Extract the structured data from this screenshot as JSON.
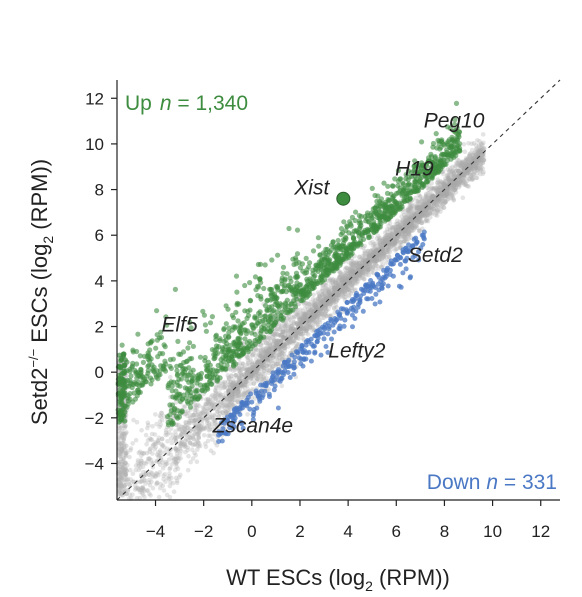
{
  "chart_data": {
    "type": "scatter",
    "xlabel_main": "WT ESCs (log",
    "xlabel_sub": "2",
    "xlabel_end": " (RPM))",
    "ylabel_main": "Setd2",
    "ylabel_sup": "−/−",
    "ylabel_mid": " ESCs (log",
    "ylabel_sub": "2",
    "ylabel_end": " (RPM))",
    "xlim": [
      -5.6,
      12.8
    ],
    "ylim": [
      -5.6,
      12.8
    ],
    "x_ticks": [
      "-4",
      "-2",
      "0",
      "2",
      "4",
      "6",
      "8",
      "10",
      "12"
    ],
    "x_tick_labels": [
      "−4",
      "−2",
      "0",
      "2",
      "4",
      "6",
      "8",
      "10",
      "12"
    ],
    "y_ticks": [
      "-4",
      "-2",
      "0",
      "2",
      "4",
      "6",
      "8",
      "10",
      "12"
    ],
    "y_tick_labels": [
      "−4",
      "−2",
      "0",
      "2",
      "4",
      "6",
      "8",
      "10",
      "12"
    ],
    "diagonal": "y = x",
    "colors": {
      "up": "#3d8c3f",
      "down": "#4a78c4",
      "unchanged": "#b3b3b3",
      "highlight": "#3d8c3f"
    },
    "up_label": "Up",
    "up_n": "n",
    "up_count": " = 1,340",
    "down_label": "Down ",
    "down_n": "n",
    "down_count": " = 331",
    "highlight_point": {
      "gene": "Xist",
      "x": 3.8,
      "y": 7.6
    },
    "labeled_genes": [
      {
        "name": "Peg10",
        "x": 8.8,
        "y": 10.8
      },
      {
        "name": "H19",
        "x": 7.2,
        "y": 9.0
      },
      {
        "name": "Xist",
        "x": 3.8,
        "y": 7.6
      },
      {
        "name": "Setd2",
        "x": 6.4,
        "y": 5.8
      },
      {
        "name": "Elf5",
        "x": -2.0,
        "y": 2.3
      },
      {
        "name": "Lefty2",
        "x": 3.3,
        "y": 1.7
      },
      {
        "name": "Zscan4e",
        "x": -0.8,
        "y": -2.3
      }
    ]
  }
}
